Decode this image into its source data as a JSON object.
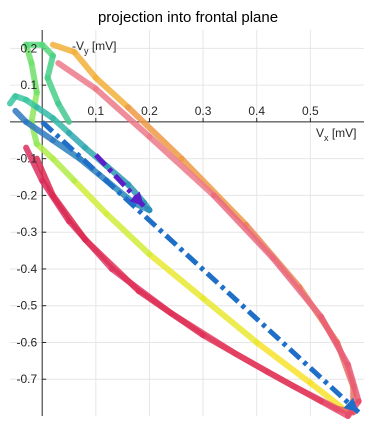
{
  "chart_data": {
    "type": "line",
    "title": "projection into frontal plane",
    "xlabel": {
      "main": "V",
      "sub": "x",
      "unit": " [mV]"
    },
    "ylabel": {
      "main": "-V",
      "sub": "y",
      "unit": " [mV]"
    },
    "xlim": [
      -0.06,
      0.6
    ],
    "ylim": [
      -0.8,
      0.25
    ],
    "grid": true,
    "x_ticks": [
      0.1,
      0.2,
      0.3,
      0.4,
      0.5
    ],
    "x_tick_labels": [
      "0.1",
      "0.2",
      "0.3",
      "0.4",
      "0.5"
    ],
    "y_ticks": [
      0.2,
      0.1,
      -0.1,
      -0.2,
      -0.3,
      -0.4,
      -0.5,
      -0.6,
      -0.7
    ],
    "y_tick_labels": [
      "0.2",
      "0.1",
      "-0.1",
      "-0.2",
      "-0.3",
      "-0.4",
      "-0.5",
      "-0.6",
      "-0.7"
    ],
    "series": [
      {
        "kind": "loop-yellow-green",
        "points": [
          [
            0.57,
            -0.79
          ],
          [
            0.5,
            -0.71
          ],
          [
            0.4,
            -0.6
          ],
          [
            0.3,
            -0.48
          ],
          [
            0.2,
            -0.36
          ],
          [
            0.12,
            -0.25
          ],
          [
            0.06,
            -0.16
          ],
          [
            0.02,
            -0.1
          ],
          [
            -0.01,
            -0.06
          ],
          [
            -0.02,
            0.0
          ],
          [
            -0.01,
            0.08
          ],
          [
            -0.02,
            0.16
          ],
          [
            -0.03,
            0.21
          ],
          [
            0.0,
            0.21
          ],
          [
            0.02,
            0.18
          ],
          [
            0.01,
            0.12
          ],
          [
            0.03,
            0.05
          ],
          [
            0.05,
            0.0
          ]
        ],
        "colors": [
          "#f7e22a",
          "#e9e830",
          "#d2ec3a",
          "#b2ec4a",
          "#8ee85a",
          "#6fe06a",
          "#55d87a",
          "#48d088",
          "#44c890"
        ]
      },
      {
        "kind": "loop-orange-red",
        "points": [
          [
            0.02,
            0.21
          ],
          [
            0.06,
            0.19
          ],
          [
            0.1,
            0.12
          ],
          [
            0.16,
            0.04
          ],
          [
            0.26,
            -0.1
          ],
          [
            0.38,
            -0.28
          ],
          [
            0.48,
            -0.45
          ],
          [
            0.55,
            -0.6
          ],
          [
            0.58,
            -0.72
          ],
          [
            0.58,
            -0.79
          ],
          [
            0.55,
            -0.78
          ],
          [
            0.47,
            -0.72
          ],
          [
            0.36,
            -0.63
          ],
          [
            0.24,
            -0.52
          ],
          [
            0.13,
            -0.4
          ],
          [
            0.05,
            -0.27
          ],
          [
            0.0,
            -0.16
          ],
          [
            -0.03,
            -0.07
          ]
        ],
        "colors": [
          "#f2b03a",
          "#ef9a46",
          "#ec8452",
          "#ea6e5e",
          "#e65a68",
          "#e2486c",
          "#de3a6a",
          "#da2f60"
        ]
      },
      {
        "kind": "loop-pink-red",
        "points": [
          [
            0.03,
            0.16
          ],
          [
            0.1,
            0.09
          ],
          [
            0.2,
            -0.04
          ],
          [
            0.32,
            -0.2
          ],
          [
            0.43,
            -0.37
          ],
          [
            0.52,
            -0.53
          ],
          [
            0.57,
            -0.66
          ],
          [
            0.59,
            -0.76
          ],
          [
            0.57,
            -0.8
          ],
          [
            0.52,
            -0.76
          ],
          [
            0.42,
            -0.68
          ],
          [
            0.3,
            -0.58
          ],
          [
            0.18,
            -0.46
          ],
          [
            0.08,
            -0.32
          ],
          [
            0.02,
            -0.2
          ],
          [
            -0.01,
            -0.1
          ]
        ],
        "colors": [
          "#ec7a88",
          "#ea6a80",
          "#e85a74",
          "#e64a68",
          "#e23c5e",
          "#de3056",
          "#da2a50"
        ]
      },
      {
        "kind": "loop-teal",
        "points": [
          [
            -0.06,
            0.05
          ],
          [
            -0.05,
            0.07
          ],
          [
            -0.03,
            0.06
          ],
          [
            -0.01,
            0.04
          ],
          [
            0.02,
            0.01
          ],
          [
            0.05,
            -0.03
          ],
          [
            0.08,
            -0.07
          ],
          [
            0.12,
            -0.12
          ],
          [
            0.16,
            -0.17
          ],
          [
            0.19,
            -0.22
          ],
          [
            0.2,
            -0.24
          ],
          [
            0.17,
            -0.22
          ],
          [
            0.12,
            -0.16
          ],
          [
            0.07,
            -0.1
          ],
          [
            0.02,
            -0.05
          ],
          [
            -0.03,
            0.0
          ],
          [
            -0.05,
            0.03
          ]
        ],
        "colors": [
          "#3ac6a0",
          "#34b8a8",
          "#30a8b0",
          "#2c98b4",
          "#2a8ab8",
          "#2a80bc",
          "#2e78c0"
        ]
      }
    ],
    "arrow_mean": {
      "start": [
        0.0,
        0.0
      ],
      "end": [
        0.59,
        -0.79
      ],
      "color": "#1f6fc9"
    },
    "arrow_qrs": {
      "start": [
        0.1,
        -0.09
      ],
      "end": [
        0.19,
        -0.23
      ],
      "color": "#5a1fc9"
    }
  }
}
